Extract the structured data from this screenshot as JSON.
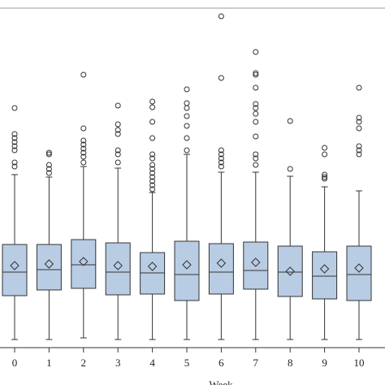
{
  "chart_data": {
    "type": "box",
    "x_label": "Week",
    "categories": [
      "0",
      "1",
      "2",
      "3",
      "4",
      "5",
      "6",
      "7",
      "8",
      "9",
      "10"
    ],
    "box_color": "#b8cce4",
    "line_color": "#333333",
    "ylim": [
      0,
      420
    ],
    "boxes": [
      {
        "whisker_low": 2,
        "q1": 56,
        "median": 85,
        "q3": 119,
        "whisker_high": 205,
        "mean": 93,
        "outliers": [
          287,
          255,
          250,
          245,
          240,
          235,
          220,
          215
        ]
      },
      {
        "whisker_low": 2,
        "q1": 63,
        "median": 88,
        "q3": 119,
        "whisker_high": 202,
        "mean": 95,
        "outliers": [
          232,
          230,
          217,
          212,
          207
        ]
      },
      {
        "whisker_low": 4,
        "q1": 65,
        "median": 94,
        "q3": 125,
        "whisker_high": 215,
        "mean": 98,
        "outliers": [
          328,
          262,
          247,
          242,
          237,
          232,
          227,
          220
        ]
      },
      {
        "whisker_low": 2,
        "q1": 57,
        "median": 85,
        "q3": 121,
        "whisker_high": 213,
        "mean": 93,
        "outliers": [
          290,
          267,
          260,
          255,
          235,
          230,
          220
        ]
      },
      {
        "whisker_low": 2,
        "q1": 58,
        "median": 84,
        "q3": 109,
        "whisker_high": 183,
        "mean": 92,
        "outliers": [
          295,
          288,
          270,
          250,
          230,
          225,
          217,
          212,
          207,
          202,
          197,
          192,
          187
        ]
      },
      {
        "whisker_low": 2,
        "q1": 50,
        "median": 82,
        "q3": 123,
        "whisker_high": 230,
        "mean": 94,
        "outliers": [
          310,
          293,
          287,
          277,
          265,
          250,
          235
        ]
      },
      {
        "whisker_low": 2,
        "q1": 58,
        "median": 85,
        "q3": 120,
        "whisker_high": 208,
        "mean": 96,
        "outliers": [
          400,
          324,
          235,
          230,
          225,
          220,
          215
        ]
      },
      {
        "whisker_low": 2,
        "q1": 64,
        "median": 87,
        "q3": 122,
        "whisker_high": 208,
        "mean": 97,
        "outliers": [
          356,
          330,
          328,
          312,
          292,
          287,
          280,
          270,
          252,
          230,
          225,
          217
        ]
      },
      {
        "whisker_low": 2,
        "q1": 55,
        "median": 85,
        "q3": 117,
        "whisker_high": 203,
        "mean": 86,
        "outliers": [
          271,
          212
        ]
      },
      {
        "whisker_low": 2,
        "q1": 52,
        "median": 80,
        "q3": 110,
        "whisker_high": 190,
        "mean": 89,
        "outliers": [
          238,
          230,
          205,
          202,
          200
        ]
      },
      {
        "whisker_low": 2,
        "q1": 50,
        "median": 82,
        "q3": 117,
        "whisker_high": 185,
        "mean": 90,
        "outliers": [
          312,
          275,
          270,
          262,
          240,
          235,
          230
        ]
      }
    ]
  }
}
